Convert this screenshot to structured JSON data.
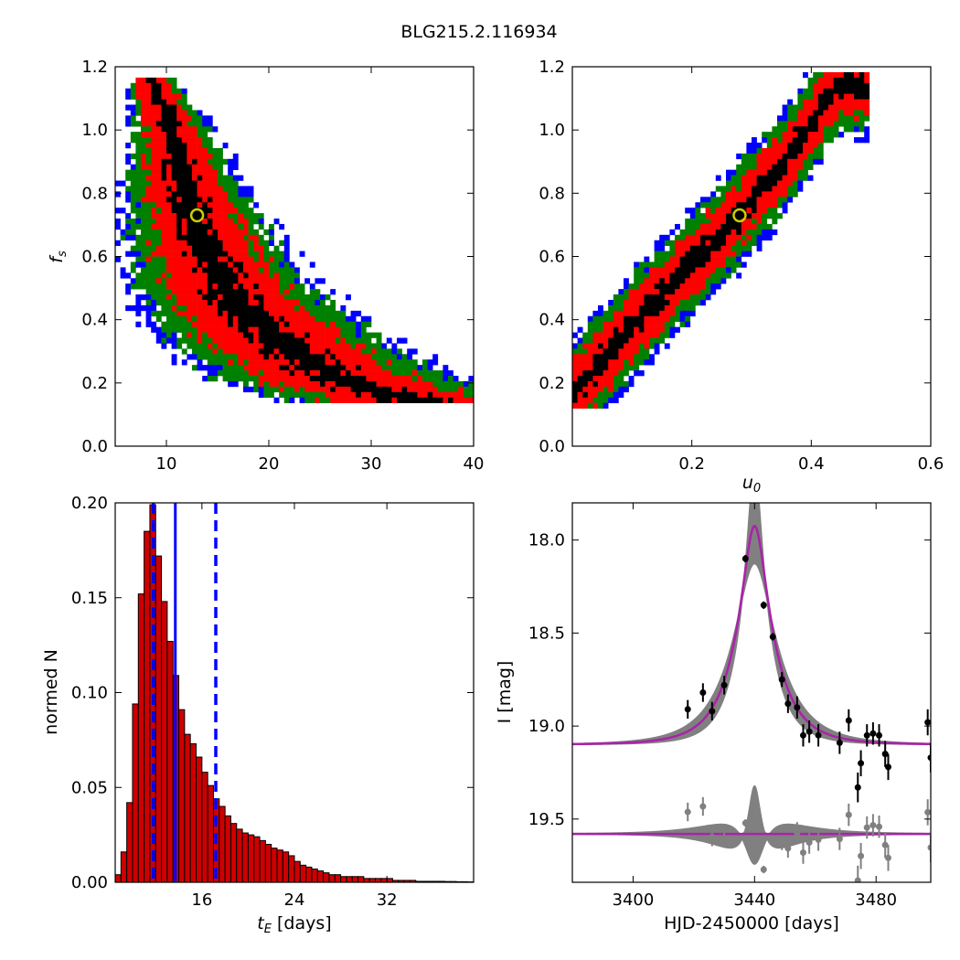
{
  "figure": {
    "title": "BLG215.2.116934"
  },
  "chart_data": [
    {
      "type": "heatmap",
      "panel": "fs_vs_tE",
      "xlabel": "",
      "ylabel": "f_s",
      "xlim": [
        5,
        40
      ],
      "ylim": [
        0.0,
        1.2
      ],
      "xticks": [
        "10",
        "20",
        "30",
        "40"
      ],
      "yticks": [
        "0.0",
        "0.2",
        "0.4",
        "0.6",
        "0.8",
        "1.0",
        "1.2"
      ],
      "confidence_colors": {
        "1sigma": "#000000",
        "2sigma": "#ff0000",
        "3sigma": "#008000",
        "4sigma": "#0000ff"
      },
      "ridge": [
        [
          8.5,
          1.17
        ],
        [
          10.5,
          1.0
        ],
        [
          11.5,
          0.85
        ],
        [
          12.5,
          0.75
        ],
        [
          13.5,
          0.65
        ],
        [
          15,
          0.55
        ],
        [
          17,
          0.45
        ],
        [
          20,
          0.36
        ],
        [
          23,
          0.28
        ],
        [
          27,
          0.21
        ],
        [
          31,
          0.17
        ],
        [
          35,
          0.14
        ],
        [
          38,
          0.13
        ]
      ],
      "best_fit": {
        "x": 13.0,
        "y": 0.73
      }
    },
    {
      "type": "heatmap",
      "panel": "fs_vs_u0",
      "xlabel": "u_0",
      "ylabel": "",
      "xlim": [
        0.0,
        0.6
      ],
      "ylim": [
        0.0,
        1.2
      ],
      "xticks": [
        "0.2",
        "0.4",
        "0.6"
      ],
      "yticks": [
        "0.0",
        "0.2",
        "0.4",
        "0.6",
        "0.8",
        "1.0",
        "1.2"
      ],
      "confidence_colors": {
        "1sigma": "#000000",
        "2sigma": "#ff0000",
        "3sigma": "#008000",
        "4sigma": "#0000ff"
      },
      "ridge": [
        [
          0.0,
          0.16
        ],
        [
          0.05,
          0.27
        ],
        [
          0.1,
          0.38
        ],
        [
          0.15,
          0.48
        ],
        [
          0.2,
          0.58
        ],
        [
          0.25,
          0.67
        ],
        [
          0.3,
          0.78
        ],
        [
          0.35,
          0.89
        ],
        [
          0.4,
          1.02
        ],
        [
          0.44,
          1.14
        ]
      ],
      "best_fit": {
        "x": 0.28,
        "y": 0.73
      }
    },
    {
      "type": "bar",
      "panel": "tE_histogram",
      "xlabel": "t_E [days]",
      "ylabel": "normed N",
      "xlim": [
        8.5,
        39.5
      ],
      "ylim": [
        0.0,
        0.2
      ],
      "xticks": [
        "16",
        "24",
        "32"
      ],
      "yticks": [
        "0.00",
        "0.05",
        "0.10",
        "0.15",
        "0.20"
      ],
      "bin_width": 0.5,
      "bin_start": 8.5,
      "bar_color": "#cc0000",
      "values": [
        0.004,
        0.016,
        0.042,
        0.094,
        0.152,
        0.185,
        0.199,
        0.172,
        0.148,
        0.127,
        0.109,
        0.091,
        0.078,
        0.073,
        0.066,
        0.058,
        0.051,
        0.044,
        0.04,
        0.035,
        0.031,
        0.028,
        0.026,
        0.025,
        0.024,
        0.022,
        0.02,
        0.018,
        0.017,
        0.016,
        0.014,
        0.011,
        0.009,
        0.008,
        0.007,
        0.006,
        0.005,
        0.004,
        0.004,
        0.003,
        0.003,
        0.003,
        0.003,
        0.002,
        0.002,
        0.002,
        0.002,
        0.002,
        0.001,
        0.001,
        0.001,
        0.001,
        0.0005,
        0.0005,
        0.0005,
        0.0005,
        0.0005,
        0.0004,
        0.0004,
        0.0003,
        0.0003,
        0.0002
      ],
      "median": 13.7,
      "interval": [
        11.8,
        17.2
      ],
      "line_color": "#0000ff"
    },
    {
      "type": "scatter",
      "panel": "light_curve",
      "xlabel": "HJD-2450000 [days]",
      "ylabel": "I [mag]",
      "xlim": [
        3380,
        3498
      ],
      "ylim": [
        19.84,
        17.8
      ],
      "xticks": [
        "3400",
        "3440",
        "3480"
      ],
      "yticks": [
        "18.0",
        "18.5",
        "19.0",
        "19.5"
      ],
      "model": {
        "t0": 3440.0,
        "tE": 13.0,
        "u0": 0.28,
        "fs": 0.73,
        "baseline": 19.1,
        "color": "#aa22aa",
        "band_color": "#808080"
      },
      "residual_offset": 19.58,
      "points": [
        {
          "x": 3418,
          "y": 18.91,
          "err": 0.05
        },
        {
          "x": 3423,
          "y": 18.82,
          "err": 0.05
        },
        {
          "x": 3426,
          "y": 18.92,
          "err": 0.05
        },
        {
          "x": 3430,
          "y": 18.78,
          "err": 0.05
        },
        {
          "x": 3437,
          "y": 18.1,
          "err": 0.02
        },
        {
          "x": 3443,
          "y": 18.35,
          "err": 0.02
        },
        {
          "x": 3446,
          "y": 18.52,
          "err": 0.02
        },
        {
          "x": 3449,
          "y": 18.75,
          "err": 0.04
        },
        {
          "x": 3451,
          "y": 18.88,
          "err": 0.05
        },
        {
          "x": 3454,
          "y": 18.9,
          "err": 0.06
        },
        {
          "x": 3456,
          "y": 19.05,
          "err": 0.06
        },
        {
          "x": 3458,
          "y": 19.03,
          "err": 0.06
        },
        {
          "x": 3461,
          "y": 19.05,
          "err": 0.06
        },
        {
          "x": 3468,
          "y": 19.09,
          "err": 0.06
        },
        {
          "x": 3471,
          "y": 18.97,
          "err": 0.06
        },
        {
          "x": 3474,
          "y": 19.33,
          "err": 0.08
        },
        {
          "x": 3475,
          "y": 19.2,
          "err": 0.07
        },
        {
          "x": 3477,
          "y": 19.05,
          "err": 0.06
        },
        {
          "x": 3479,
          "y": 19.04,
          "err": 0.06
        },
        {
          "x": 3481,
          "y": 19.05,
          "err": 0.06
        },
        {
          "x": 3483,
          "y": 19.15,
          "err": 0.07
        },
        {
          "x": 3484,
          "y": 19.22,
          "err": 0.07
        },
        {
          "x": 3497,
          "y": 18.98,
          "err": 0.07
        },
        {
          "x": 3498,
          "y": 19.17,
          "err": 0.08
        }
      ]
    }
  ]
}
